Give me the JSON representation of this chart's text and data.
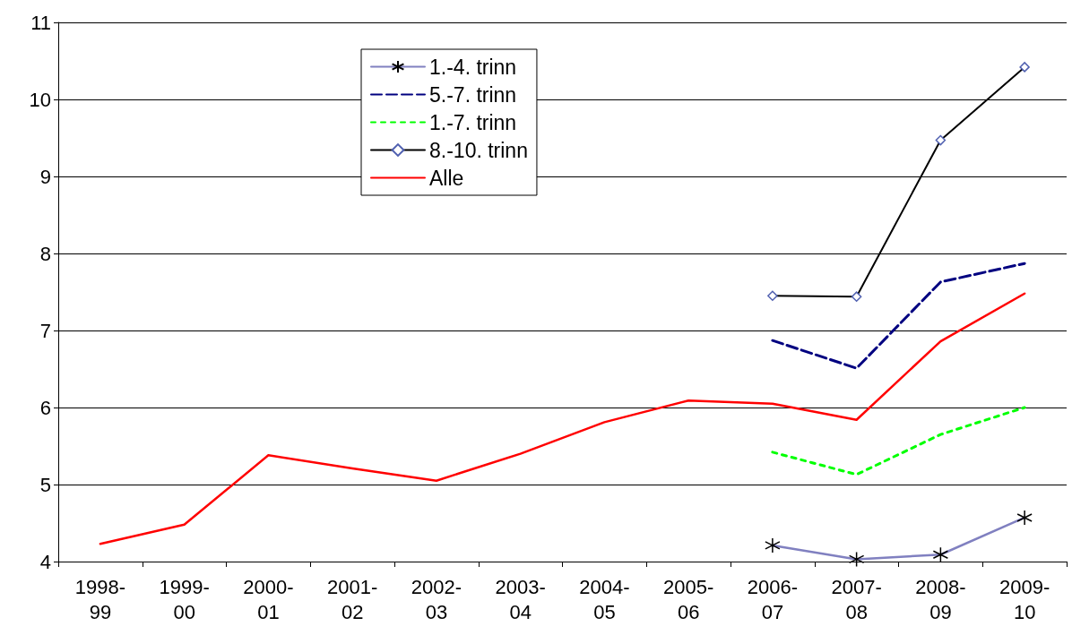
{
  "chart_data": {
    "type": "line",
    "categories": [
      "1998-99",
      "1999-00",
      "2000-01",
      "2001-02",
      "2002-03",
      "2003-04",
      "2004-05",
      "2005-06",
      "2006-07",
      "2007-08",
      "2008-09",
      "2009-10"
    ],
    "series": [
      {
        "name": "1.-4. trinn",
        "color": "#8080c0",
        "marker": "cross",
        "line_style": "solid",
        "values": [
          null,
          null,
          null,
          null,
          null,
          null,
          null,
          null,
          4.21,
          4.03,
          4.09,
          4.57
        ]
      },
      {
        "name": "5.-7. trinn",
        "color": "#000080",
        "marker": "none",
        "line_style": "dashed",
        "values": [
          null,
          null,
          null,
          null,
          null,
          null,
          null,
          null,
          6.87,
          6.51,
          7.63,
          7.87
        ]
      },
      {
        "name": "1.-7. trinn",
        "color": "#00ff00",
        "marker": "none",
        "line_style": "dotted",
        "values": [
          null,
          null,
          null,
          null,
          null,
          null,
          null,
          null,
          5.42,
          5.13,
          5.65,
          6.0
        ]
      },
      {
        "name": "8.-10. trinn",
        "color": "#000000",
        "marker": "diamond",
        "line_style": "solid",
        "values": [
          null,
          null,
          null,
          null,
          null,
          null,
          null,
          null,
          7.45,
          7.44,
          9.47,
          10.42
        ]
      },
      {
        "name": "Alle",
        "color": "#ff0000",
        "marker": "none",
        "line_style": "solid",
        "values": [
          4.23,
          4.48,
          5.38,
          5.21,
          5.05,
          5.4,
          5.81,
          6.09,
          6.05,
          5.84,
          6.86,
          7.48
        ]
      }
    ],
    "ylim": [
      4,
      11
    ],
    "yticks": [
      4,
      5,
      6,
      7,
      8,
      9,
      10,
      11
    ],
    "grid": "y",
    "legend": "top"
  }
}
